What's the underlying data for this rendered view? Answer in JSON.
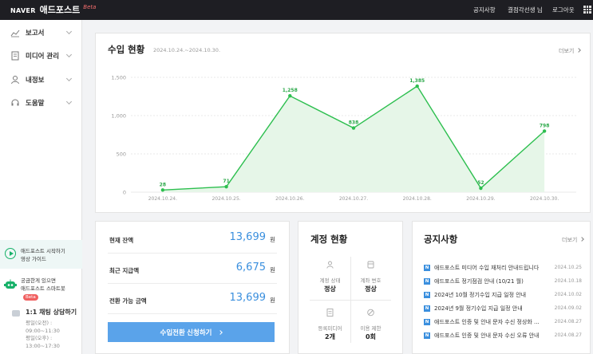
{
  "header": {
    "brand_naver": "NAVER",
    "brand_product": "애드포스트",
    "brand_beta": "Beta",
    "nav": [
      "공지사항",
      "결점각선생 님",
      "로그아웃"
    ]
  },
  "sidebar": {
    "items": [
      {
        "label": "보고서",
        "icon": "trend-line-icon"
      },
      {
        "label": "미디어 관리",
        "icon": "document-icon"
      },
      {
        "label": "내정보",
        "icon": "person-icon"
      },
      {
        "label": "도움말",
        "icon": "headset-icon"
      }
    ],
    "guide": {
      "line1": "애드포스트 시작하기",
      "line2": "영상 가이드"
    },
    "chatbot": {
      "line1": "궁금한게 있으면",
      "line2": "애드포스트 스마트봇",
      "badge": "Beta"
    },
    "chat": {
      "title": "1:1 채팅 상담하기",
      "hours": [
        "평일(오전) :",
        "09:00~11:30",
        "평일(오후) :",
        "13:00~17:30"
      ]
    }
  },
  "revenue": {
    "title": "수입 현황",
    "period": "2024.10.24.~2024.10.30.",
    "more": "더보기"
  },
  "chart_data": {
    "type": "area",
    "categories": [
      "2024.10.24.",
      "2024.10.25.",
      "2024.10.26.",
      "2024.10.27.",
      "2024.10.28.",
      "2024.10.29.",
      "2024.10.30."
    ],
    "series": [
      {
        "values": [
          28,
          71,
          1258,
          838,
          1385,
          52,
          798
        ]
      }
    ],
    "data_labels": [
      "28",
      "71",
      "1,258",
      "838",
      "1,385",
      "52",
      "798"
    ],
    "y_ticks": [
      "0",
      "500",
      "1,000",
      "1,500"
    ],
    "ylim": [
      0,
      1500
    ],
    "grid": "horizontal-dashed",
    "line_color": "#2dbf4f",
    "fill_color": "#e6f6e8"
  },
  "balance": {
    "rows": [
      {
        "label": "현재 잔액",
        "value": "13,699",
        "unit": "원"
      },
      {
        "label": "최근 지급액",
        "value": "6,675",
        "unit": "원"
      },
      {
        "label": "전환 가능 금액",
        "value": "13,699",
        "unit": "원"
      }
    ],
    "button": "수입전환 신청하기"
  },
  "account": {
    "title": "계정 현황",
    "cells": [
      {
        "label": "계정 상태",
        "value": "정상",
        "icon": "person-icon"
      },
      {
        "label": "계좌 변호",
        "value": "정상",
        "icon": "bank-card-icon"
      },
      {
        "label": "등록미디어",
        "value": "2개",
        "icon": "media-doc-icon"
      },
      {
        "label": "이용 제한",
        "value": "0회",
        "icon": "ban-icon"
      }
    ]
  },
  "notices": {
    "title": "공지사항",
    "more": "더보기",
    "badge": "N",
    "items": [
      {
        "title": "애드포스트 미디어 수입 재처리 안내드립니다",
        "date": "2024.10.25"
      },
      {
        "title": "애드포스트 정기점검 안내 (10/21 월)",
        "date": "2024.10.18"
      },
      {
        "title": "2024년 10월 정기수입 지급 일정 안내",
        "date": "2024.10.02"
      },
      {
        "title": "2024년 9월 정기수입 지급 일정 안내",
        "date": "2024.09.02"
      },
      {
        "title": "애드포스트 인증 및 안내 문자 수신 정상화 ...",
        "date": "2024.08.27"
      },
      {
        "title": "애드포스트 인증 및 안내 문자 수신 오류 안내",
        "date": "2024.08.27"
      }
    ]
  },
  "colors": {
    "topbar": "#1e1e23",
    "accent_blue": "#3a8fde",
    "button_blue": "#5aa3ea",
    "chart_green": "#2dbf4f"
  }
}
